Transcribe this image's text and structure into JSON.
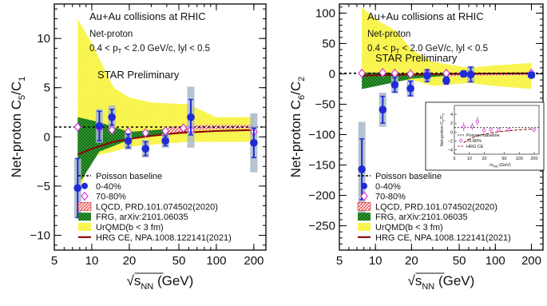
{
  "chart_data": [
    {
      "type": "scatter",
      "ylabel_main": "Net-proton C",
      "ylabel_sub1": "5",
      "ylabel_mid": "/C",
      "ylabel_sub2": "1",
      "xlabel_main": "s",
      "xlabel_sub": "NN",
      "xlabel_unit": " (GeV)",
      "xscale": "log",
      "xlim": [
        5,
        250
      ],
      "ylim": [
        -11.5,
        13.5
      ],
      "xticks": [
        5,
        10,
        20,
        50,
        100,
        200
      ],
      "xtick_labels": [
        "5",
        "10",
        "20",
        "50",
        "100",
        "200"
      ],
      "yticks": [
        -10,
        -5,
        0,
        5,
        10
      ],
      "ytick_labels": [
        "−10",
        "−5",
        "0",
        "5",
        "10"
      ],
      "annotations": {
        "system": "Au+Au collisions at RHIC",
        "particle": "Net-proton",
        "cuts_a": "0.4 < p",
        "cuts_sub": "T",
        "cuts_b": " < 2.0 GeV/c, lyl < 0.5",
        "prelim": "STAR Preliminary"
      },
      "baseline": 1,
      "series": [
        {
          "name": "0-40%",
          "color": "#1f2bd6",
          "points": [
            {
              "x": 7.7,
              "y": -5.2,
              "stat": 3.0,
              "sys": 3.0
            },
            {
              "x": 11.5,
              "y": 1.1,
              "stat": 1.5,
              "sys": 1.7
            },
            {
              "x": 14.5,
              "y": 2.0,
              "stat": 0.8,
              "sys": 1.2
            },
            {
              "x": 19.6,
              "y": -0.4,
              "stat": 0.7,
              "sys": 0.9
            },
            {
              "x": 27,
              "y": -1.2,
              "stat": 0.7,
              "sys": 0.9
            },
            {
              "x": 39,
              "y": -0.4,
              "stat": 0.5,
              "sys": 0.7
            },
            {
              "x": 62.4,
              "y": 2.0,
              "stat": 1.8,
              "sys": 3.1
            },
            {
              "x": 200,
              "y": -0.6,
              "stat": 1.5,
              "sys": 3.0
            }
          ]
        },
        {
          "name": "70-80%",
          "color": "#d63ad6",
          "points": [
            {
              "x": 7.7,
              "y": 1.0
            },
            {
              "x": 11.5,
              "y": 0.9
            },
            {
              "x": 14.5,
              "y": 0.7
            },
            {
              "x": 19.6,
              "y": 0.5
            },
            {
              "x": 27,
              "y": 0.4
            },
            {
              "x": 39,
              "y": 0.6
            },
            {
              "x": 54.4,
              "y": 0.9
            },
            {
              "x": 62.4,
              "y": 0.7
            },
            {
              "x": 200,
              "y": 0.5
            }
          ]
        }
      ],
      "bands": {
        "lqcd": [
          [
            39,
            0.3,
            1.0
          ],
          [
            54.4,
            0.5,
            1.1
          ],
          [
            62.4,
            0.7,
            1.2
          ],
          [
            200,
            0.9,
            1.2
          ]
        ],
        "frg": [
          [
            7.7,
            -5.0,
            2.0
          ],
          [
            11.5,
            -1.5,
            1.5
          ],
          [
            20,
            -0.3,
            0.5
          ],
          [
            40,
            0.4,
            0.8
          ],
          [
            60,
            0.5,
            0.9
          ]
        ],
        "urqmd": [
          [
            7.7,
            -6.0,
            12.0
          ],
          [
            10,
            -2.0,
            9.5
          ],
          [
            15,
            -1.5,
            5.0
          ],
          [
            20,
            -1.0,
            4.0
          ],
          [
            30,
            -0.8,
            3.5
          ],
          [
            60,
            -0.5,
            3.3
          ],
          [
            100,
            -0.5,
            2.0
          ],
          [
            200,
            -0.5,
            2.0
          ]
        ],
        "hrg": [
          [
            7.7,
            -1.8
          ],
          [
            10,
            -1.2
          ],
          [
            15,
            -0.5
          ],
          [
            20,
            -0.2
          ],
          [
            30,
            0.1
          ],
          [
            50,
            0.4
          ],
          [
            100,
            0.6
          ],
          [
            200,
            0.7
          ]
        ]
      },
      "legend": [
        {
          "key": "poisson",
          "label": "Poisson baseline"
        },
        {
          "key": "cent0",
          "label": "0-40%"
        },
        {
          "key": "cent70",
          "label": "70-80%"
        },
        {
          "key": "lqcd",
          "label": "LQCD, PRD.101.074502(2020)"
        },
        {
          "key": "frg",
          "label": "FRG, arXiv:2101.06035"
        },
        {
          "key": "urqmd",
          "label": "UrQMD(b < 3 fm)"
        },
        {
          "key": "hrg",
          "label": "HRG CE, NPA.1008.122141(2021)"
        }
      ]
    },
    {
      "type": "scatter",
      "ylabel_main": "Net-proton C",
      "ylabel_sub1": "6",
      "ylabel_mid": "/C",
      "ylabel_sub2": "2",
      "xlabel_main": "s",
      "xlabel_sub": "NN",
      "xlabel_unit": " (GeV)",
      "xscale": "log",
      "xlim": [
        5,
        250
      ],
      "ylim": [
        -290,
        115
      ],
      "xticks": [
        5,
        10,
        20,
        50,
        100,
        200
      ],
      "xtick_labels": [
        "5",
        "10",
        "20",
        "50",
        "100",
        "200"
      ],
      "yticks": [
        -250,
        -200,
        -150,
        -100,
        -50,
        0,
        50,
        100
      ],
      "ytick_labels": [
        "−250",
        "−200",
        "−150",
        "−100",
        "−50",
        "0",
        "50",
        "100"
      ],
      "annotations": {
        "system": "Au+Au collisions at RHIC",
        "particle": "Net-proton",
        "cuts_a": "0.4 < p",
        "cuts_sub": "T",
        "cuts_b": " < 2.0 GeV/c, lyl < 0.5",
        "prelim": "STAR Preliminary"
      },
      "baseline": 1,
      "series": [
        {
          "name": "0-40%",
          "color": "#1f2bd6",
          "points": [
            {
              "x": 7.7,
              "y": -157,
              "stat": 50,
              "sys": 78
            },
            {
              "x": 11.5,
              "y": -59,
              "stat": 22,
              "sys": 28
            },
            {
              "x": 14.5,
              "y": -18,
              "stat": 12,
              "sys": 14
            },
            {
              "x": 19.6,
              "y": -24,
              "stat": 12,
              "sys": 14
            },
            {
              "x": 27,
              "y": -3,
              "stat": 10,
              "sys": 10
            },
            {
              "x": 39,
              "y": -11,
              "stat": 6,
              "sys": 6
            },
            {
              "x": 54.4,
              "y": 0,
              "stat": 5,
              "sys": 5
            },
            {
              "x": 62.4,
              "y": -1,
              "stat": 12,
              "sys": 14
            },
            {
              "x": 200,
              "y": -2,
              "stat": 4,
              "sys": 5
            }
          ]
        },
        {
          "name": "70-80%",
          "color": "#d63ad6",
          "points": [
            {
              "x": 7.7,
              "y": 1
            },
            {
              "x": 11.5,
              "y": 2
            },
            {
              "x": 14.5,
              "y": 1
            },
            {
              "x": 19.6,
              "y": 0
            },
            {
              "x": 27,
              "y": 1
            },
            {
              "x": 39,
              "y": 1
            },
            {
              "x": 200,
              "y": 1
            }
          ]
        }
      ],
      "bands": {
        "lqcd": [
          [
            39,
            -4,
            2
          ],
          [
            54.4,
            -3,
            2
          ],
          [
            62.4,
            -3,
            2
          ],
          [
            200,
            -2,
            1
          ]
        ],
        "frg": [
          [
            7.7,
            -25,
            2
          ],
          [
            11.5,
            -18,
            2
          ],
          [
            20,
            -8,
            1
          ],
          [
            40,
            -3,
            1
          ],
          [
            60,
            -2,
            1
          ]
        ],
        "urqmd": [
          [
            7.7,
            -20,
            110
          ],
          [
            10,
            -12,
            90
          ],
          [
            15,
            -12,
            70
          ],
          [
            20,
            -10,
            40
          ],
          [
            30,
            -20,
            20
          ],
          [
            60,
            -15,
            10
          ],
          [
            100,
            -20,
            14
          ],
          [
            200,
            -25,
            18
          ]
        ],
        "hrg": [
          [
            7.7,
            -3
          ],
          [
            10,
            -2
          ],
          [
            15,
            -1.5
          ],
          [
            20,
            -1
          ],
          [
            30,
            -0.5
          ],
          [
            50,
            0
          ],
          [
            100,
            0.5
          ],
          [
            200,
            0.8
          ]
        ]
      },
      "legend": [
        {
          "key": "poisson",
          "label": "Poisson baseline"
        },
        {
          "key": "cent0",
          "label": "0-40%"
        },
        {
          "key": "cent70",
          "label": "70-80%"
        },
        {
          "key": "lqcd",
          "label": "LQCD, PRD.101.074502(2020)"
        },
        {
          "key": "frg",
          "label": "FRG, arXiv:2101.06035"
        },
        {
          "key": "urqmd",
          "label": "UrQMD(b < 3 fm)"
        },
        {
          "key": "hrg",
          "label": "HRG CE, NPA.1008.122141(2021)"
        }
      ],
      "inset": {
        "ylabel": "Net-proton C",
        "ylabel_sub1": "6",
        "ylabel_mid": "/C",
        "ylabel_sub2": "2",
        "xlabel": "√s",
        "xlabel_sub": "NN",
        "xlabel_unit": " (GeV)",
        "xticks": [
          5,
          10,
          20,
          50,
          100,
          200
        ],
        "xtick_labels": [
          "5",
          "10",
          "20",
          "50",
          "100",
          "200"
        ],
        "yticks": [
          -4,
          -2,
          0,
          2,
          4
        ],
        "ytick_labels": [
          "−4",
          "−2",
          "0",
          "2",
          "4"
        ],
        "ylim": [
          -5,
          6
        ],
        "legend": [
          "Poisson baseline",
          "70-80%",
          "HRG CE"
        ],
        "points": [
          {
            "x": 7.7,
            "y": 1.2,
            "err": 1.0
          },
          {
            "x": 11.5,
            "y": 1.3,
            "err": 0.8
          },
          {
            "x": 14.5,
            "y": 2.4,
            "err": 1.0
          },
          {
            "x": 19.6,
            "y": 0.4,
            "err": 0.4
          },
          {
            "x": 27,
            "y": 0.6,
            "err": 0.3
          },
          {
            "x": 39,
            "y": 0.5,
            "err": 0.3
          },
          {
            "x": 62.4,
            "y": 0.6,
            "err": 0.3
          },
          {
            "x": 200,
            "y": 0.5,
            "err": 0.3
          }
        ],
        "hrg": [
          [
            7.7,
            -2.4
          ],
          [
            10,
            -1.6
          ],
          [
            15,
            -0.8
          ],
          [
            20,
            -0.5
          ],
          [
            30,
            -0.1
          ],
          [
            50,
            0.2
          ],
          [
            100,
            0.5
          ],
          [
            200,
            0.7
          ]
        ]
      }
    }
  ]
}
